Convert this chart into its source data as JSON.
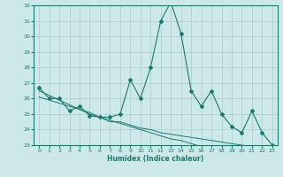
{
  "x": [
    0,
    1,
    2,
    3,
    4,
    5,
    6,
    7,
    8,
    9,
    10,
    11,
    12,
    13,
    14,
    15,
    16,
    17,
    18,
    19,
    20,
    21,
    22,
    23
  ],
  "y_main": [
    26.7,
    26.0,
    26.0,
    25.2,
    25.5,
    24.9,
    24.8,
    24.8,
    25.0,
    27.2,
    26.0,
    28.0,
    31.0,
    32.2,
    30.2,
    26.5,
    25.5,
    26.5,
    25.0,
    24.2,
    23.8,
    25.2,
    23.8,
    23.0
  ],
  "y_trend1": [
    26.5,
    26.2,
    25.9,
    25.6,
    25.3,
    25.1,
    24.8,
    24.5,
    24.5,
    24.3,
    24.1,
    24.0,
    23.8,
    23.7,
    23.6,
    23.5,
    23.4,
    23.3,
    23.2,
    23.1,
    23.0,
    22.9,
    22.8,
    22.7
  ],
  "y_trend2": [
    26.1,
    25.9,
    25.7,
    25.5,
    25.3,
    25.0,
    24.8,
    24.6,
    24.4,
    24.2,
    24.0,
    23.8,
    23.6,
    23.4,
    23.3,
    23.1,
    22.9,
    22.8,
    22.6,
    22.5,
    22.3,
    22.2,
    22.0,
    21.9
  ],
  "ylim": [
    23,
    32
  ],
  "xlim": [
    -0.5,
    23.5
  ],
  "yticks": [
    23,
    24,
    25,
    26,
    27,
    28,
    29,
    30,
    31,
    32
  ],
  "xticks": [
    0,
    1,
    2,
    3,
    4,
    5,
    6,
    7,
    8,
    9,
    10,
    11,
    12,
    13,
    14,
    15,
    16,
    17,
    18,
    19,
    20,
    21,
    22,
    23
  ],
  "xlabel": "Humidex (Indice chaleur)",
  "line_color": "#1a7a6e",
  "bg_color": "#cce8e8",
  "grid_color": "#aacccc"
}
